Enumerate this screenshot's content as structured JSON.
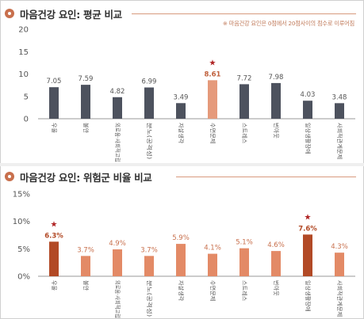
{
  "chart_data": [
    {
      "type": "bar",
      "title": "마음건강 요인: 평균 비교",
      "note": "※ 마음건강 요인은 0점에서 20점사이의 점수로 이루어짐",
      "categories": [
        "우울",
        "불안",
        "외로움·사회적고립",
        "분노(공격성)",
        "자살생각",
        "수면문제",
        "스트레스",
        "번아웃",
        "일상생활장애",
        "사회적관계문제"
      ],
      "values": [
        7.05,
        7.59,
        4.82,
        6.99,
        3.49,
        8.61,
        7.72,
        7.98,
        4.03,
        3.48
      ],
      "value_labels": [
        "7.05",
        "7.59",
        "4.82",
        "6.99",
        "3.49",
        "8.61",
        "7.72",
        "7.98",
        "4.03",
        "3.48"
      ],
      "ylim": [
        0,
        20
      ],
      "yticks": [
        "0",
        "5",
        "10",
        "15",
        "20"
      ],
      "highlight_index": 5,
      "colors": {
        "bar": "#4d525e",
        "highlight": "#e59a7b",
        "highlight_label": "#c0603c",
        "star": "#b02525"
      },
      "grid": false
    },
    {
      "type": "bar",
      "title": "마음건강 요인: 위험군 비율 비교",
      "categories": [
        "우울",
        "불안",
        "외로움·사회적고립",
        "분노(공격성)",
        "자살생각",
        "수면문제",
        "스트레스",
        "번아웃",
        "일상생활장애",
        "사회적관계문제"
      ],
      "values": [
        6.3,
        3.7,
        4.9,
        3.7,
        5.9,
        4.1,
        5.1,
        4.6,
        7.6,
        4.3
      ],
      "value_labels": [
        "6.3%",
        "3.7%",
        "4.9%",
        "3.7%",
        "5.9%",
        "4.1%",
        "5.1%",
        "4.6%",
        "7.6%",
        "4.3%"
      ],
      "ylim": [
        0,
        15
      ],
      "yticks": [
        "0%",
        "5%",
        "10%",
        "15%"
      ],
      "highlight_indices": [
        0,
        8
      ],
      "colors": {
        "bar": "#e38a66",
        "highlight": "#b24a26",
        "label": "#c8704d",
        "highlight_label": "#b24a26",
        "star": "#b02525"
      },
      "grid": false
    }
  ]
}
